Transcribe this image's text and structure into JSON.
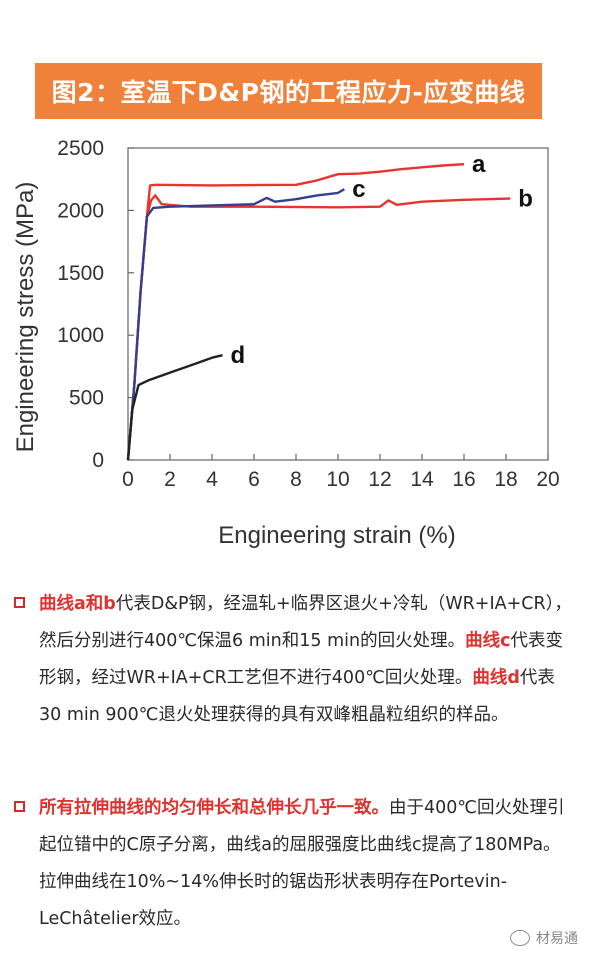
{
  "banner": {
    "title": "图2：室温下D&P钢的工程应力-应变曲线"
  },
  "chart_data": {
    "type": "line",
    "xlabel": "Engineering strain (%)",
    "ylabel": "Engineering stress (MPa)",
    "xlim": [
      0,
      20
    ],
    "ylim": [
      0,
      2500
    ],
    "xticks": [
      0,
      2,
      4,
      6,
      8,
      10,
      12,
      14,
      16,
      18,
      20
    ],
    "yticks": [
      0,
      500,
      1000,
      1500,
      2000,
      2500
    ],
    "series": [
      {
        "name": "a",
        "color": "#e8332f",
        "points": [
          [
            0,
            0
          ],
          [
            0.3,
            600
          ],
          [
            0.6,
            1350
          ],
          [
            0.9,
            1950
          ],
          [
            1.05,
            2200
          ],
          [
            1.3,
            2205
          ],
          [
            4,
            2200
          ],
          [
            8,
            2205
          ],
          [
            9,
            2240
          ],
          [
            10,
            2290
          ],
          [
            11,
            2295
          ],
          [
            12,
            2310
          ],
          [
            13,
            2330
          ],
          [
            14,
            2345
          ],
          [
            15,
            2360
          ],
          [
            16,
            2370
          ]
        ]
      },
      {
        "name": "b",
        "color": "#e8332f",
        "points": [
          [
            0,
            0
          ],
          [
            0.3,
            600
          ],
          [
            0.6,
            1350
          ],
          [
            0.9,
            1950
          ],
          [
            1.1,
            2080
          ],
          [
            1.3,
            2120
          ],
          [
            1.6,
            2050
          ],
          [
            3,
            2030
          ],
          [
            6,
            2030
          ],
          [
            10,
            2025
          ],
          [
            12,
            2030
          ],
          [
            12.4,
            2080
          ],
          [
            12.8,
            2045
          ],
          [
            14,
            2070
          ],
          [
            16,
            2085
          ],
          [
            18.2,
            2095
          ]
        ]
      },
      {
        "name": "c",
        "color": "#34408f",
        "points": [
          [
            0,
            0
          ],
          [
            0.3,
            600
          ],
          [
            0.6,
            1350
          ],
          [
            0.9,
            1950
          ],
          [
            1.2,
            2020
          ],
          [
            2,
            2030
          ],
          [
            4,
            2040
          ],
          [
            6,
            2050
          ],
          [
            6.6,
            2100
          ],
          [
            7,
            2070
          ],
          [
            8,
            2090
          ],
          [
            9,
            2120
          ],
          [
            10,
            2140
          ],
          [
            10.3,
            2170
          ]
        ]
      },
      {
        "name": "d",
        "color": "#222222",
        "points": [
          [
            0,
            0
          ],
          [
            0.2,
            400
          ],
          [
            0.5,
            600
          ],
          [
            1,
            640
          ],
          [
            2,
            700
          ],
          [
            3,
            760
          ],
          [
            4,
            820
          ],
          [
            4.5,
            840
          ]
        ]
      }
    ],
    "series_labels": [
      "a",
      "b",
      "c",
      "d"
    ]
  },
  "bullets": [
    {
      "parts": [
        {
          "text": "曲线a和b",
          "red": true
        },
        {
          "text": "代表D&P钢，经温轧+临界区退火+冷轧（WR+IA+CR），然后分别进行400℃保温6  min和15 min的回火处理。",
          "red": false
        },
        {
          "text": "曲线c",
          "red": true
        },
        {
          "text": "代表变形钢，经过WR+IA+CR工艺但不进行400℃回火处理。",
          "red": false
        },
        {
          "text": "曲线d",
          "red": true
        },
        {
          "text": "代表30 min 900℃退火处理获得的具有双峰粗晶粒组织的样品。",
          "red": false
        }
      ]
    },
    {
      "parts": [
        {
          "text": "所有拉伸曲线的均匀伸长和总伸长几乎一致。",
          "red": true
        },
        {
          "text": "由于400℃回火处理引起位错中的C原子分离，曲线a的屈服强度比曲线c提高了180MPa。拉伸曲线在10%~14%伸长时的锯齿形状表明存在Portevin-LeChâtelier效应。",
          "red": false
        }
      ]
    }
  ],
  "watermark": {
    "text": "材易通"
  }
}
